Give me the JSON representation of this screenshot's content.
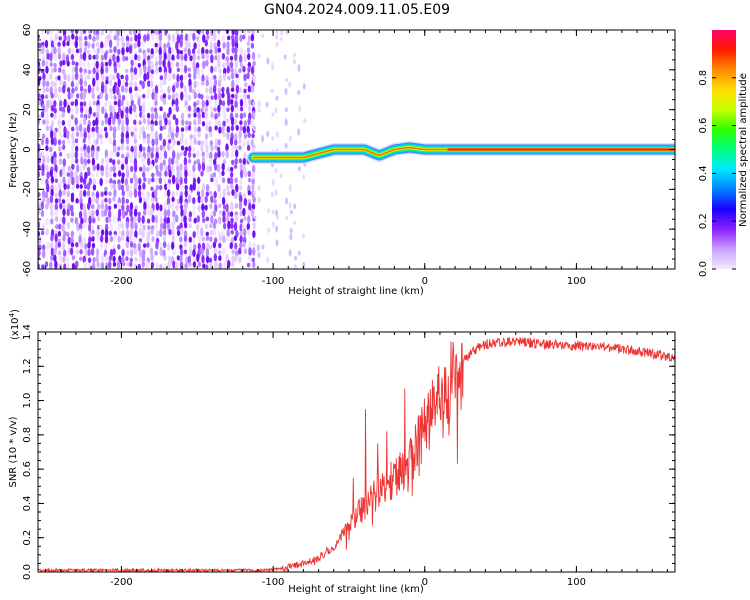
{
  "figure": {
    "title": "GN04.2024.009.11.05.E09"
  },
  "chart_data": [
    {
      "type": "heatmap",
      "xlabel": "Height of straight line (km)",
      "ylabel": "Frequency (Hz)",
      "xlim": [
        -255,
        165
      ],
      "ylim": [
        -60,
        60
      ],
      "x_ticks": [
        -200,
        -100,
        0,
        100
      ],
      "y_ticks": [
        -60,
        -40,
        -20,
        0,
        20,
        40,
        60
      ],
      "noise_region_x": [
        -255,
        -113
      ],
      "scatter_region_x": [
        -113,
        -80
      ],
      "trace": {
        "points": [
          {
            "x": -113,
            "y": -4
          },
          {
            "x": -95,
            "y": -4
          },
          {
            "x": -80,
            "y": -4
          },
          {
            "x": -70,
            "y": -2
          },
          {
            "x": -60,
            "y": 0
          },
          {
            "x": -50,
            "y": 0
          },
          {
            "x": -40,
            "y": 0
          },
          {
            "x": -30,
            "y": -3
          },
          {
            "x": -20,
            "y": 0
          },
          {
            "x": -10,
            "y": 1
          },
          {
            "x": 0,
            "y": 0
          },
          {
            "x": 165,
            "y": 0
          }
        ],
        "core_from_x": 15
      },
      "colorbar": {
        "label": "Normalized spectral amplitude",
        "range": [
          0,
          1
        ],
        "ticks": [
          0.0,
          0.2,
          0.4,
          0.6,
          0.8
        ],
        "tick_labels": [
          "0.0",
          "0.2",
          "0.4",
          "0.6",
          "0.8"
        ],
        "colors": [
          "#f4eaff",
          "#c9a0ff",
          "#8a20ff",
          "#1b00ff",
          "#0080ff",
          "#00e8ff",
          "#00ff80",
          "#2dff00",
          "#c8ff00",
          "#ffdc00",
          "#ff8a00",
          "#ff1a00",
          "#ff006a"
        ]
      }
    },
    {
      "type": "line",
      "xlabel": "Height of straight line (km)",
      "ylabel": "SNR (10 * v/v)",
      "y_multiplier": "(x10",
      "y_multiplier_exp": "4",
      "y_multiplier_close": ")",
      "xlim": [
        -255,
        165
      ],
      "ylim": [
        0,
        1.4
      ],
      "x_ticks": [
        -200,
        -100,
        0,
        100
      ],
      "y_ticks": [
        0.0,
        0.2,
        0.4,
        0.6,
        0.8,
        1.0,
        1.2,
        1.4
      ],
      "y_tick_labels": [
        "0.0",
        "0.2",
        "0.4",
        "0.6",
        "0.8",
        "1.0",
        "1.2",
        "1.4"
      ],
      "color": "#ee3333",
      "series": [
        {
          "x": [
            -255,
            -200,
            -150,
            -110,
            -100,
            -90,
            -80,
            -70,
            -60,
            -50,
            -40,
            -30,
            -20,
            -10,
            0,
            10,
            20,
            30,
            40,
            50,
            60,
            80,
            100,
            120,
            140,
            150,
            165
          ],
          "y": [
            0.01,
            0.01,
            0.01,
            0.01,
            0.015,
            0.03,
            0.05,
            0.08,
            0.15,
            0.28,
            0.38,
            0.48,
            0.55,
            0.63,
            0.85,
            1.0,
            1.15,
            1.28,
            1.33,
            1.34,
            1.34,
            1.33,
            1.32,
            1.31,
            1.29,
            1.27,
            1.25
          ]
        }
      ],
      "spikes": [
        {
          "x": -39,
          "y": 0.95
        },
        {
          "x": -13,
          "y": 1.07
        },
        {
          "x": -47,
          "y": 0.55
        },
        {
          "x": -31,
          "y": 0.75
        },
        {
          "x": -25,
          "y": 0.82
        }
      ]
    }
  ]
}
